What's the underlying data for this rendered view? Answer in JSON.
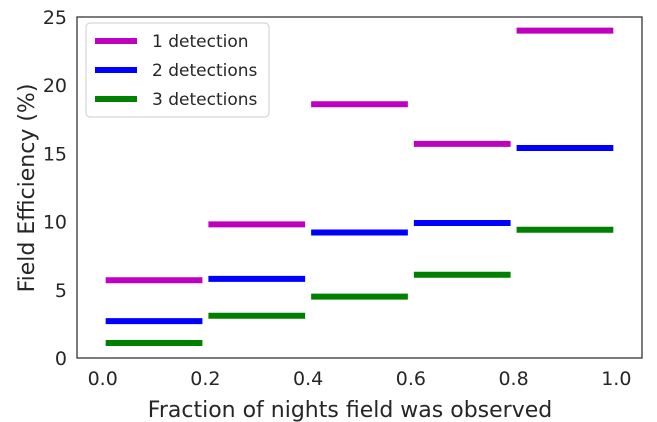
{
  "chart_data": {
    "type": "line",
    "title": "",
    "xlabel": "Fraction of nights field was observed",
    "ylabel": "Field Efficiency (%)",
    "xlim": [
      -0.05,
      1.05
    ],
    "ylim": [
      0,
      25
    ],
    "xticks": [
      "0.0",
      "0.2",
      "0.4",
      "0.6",
      "0.8",
      "1.0"
    ],
    "yticks": [
      "0",
      "5",
      "10",
      "15",
      "20",
      "25"
    ],
    "grid": false,
    "legend_position": "top-left",
    "bins": [
      [
        0.0,
        0.2
      ],
      [
        0.2,
        0.4
      ],
      [
        0.4,
        0.6
      ],
      [
        0.6,
        0.8
      ],
      [
        0.8,
        1.0
      ]
    ],
    "series": [
      {
        "name": "1 detection",
        "color": "#bf00bf",
        "values": [
          5.7,
          9.8,
          18.6,
          15.7,
          24.0
        ]
      },
      {
        "name": "2 detections",
        "color": "#0000ff",
        "values": [
          2.7,
          5.8,
          9.2,
          9.9,
          15.4
        ]
      },
      {
        "name": "3 detections",
        "color": "#008000",
        "values": [
          1.1,
          3.1,
          4.5,
          6.1,
          9.4
        ]
      }
    ]
  }
}
